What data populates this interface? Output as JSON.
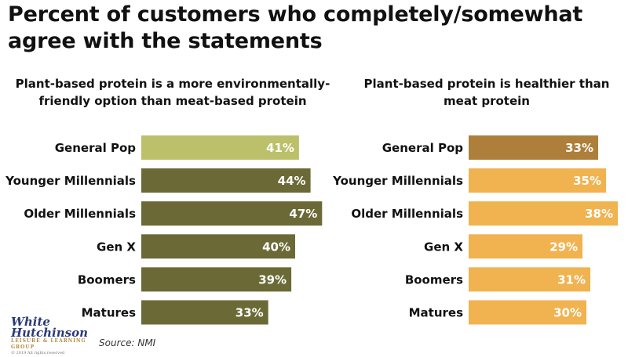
{
  "title": "Percent of customers who completely/somewhat agree with the statements",
  "source": "Source: NMI",
  "logo": {
    "line1": "White",
    "line2": "Hutchinson",
    "line3": "LEISURE & LEARNING GROUP",
    "line4": "© 2019 All rights reserved"
  },
  "chart_data": [
    {
      "type": "bar",
      "orientation": "horizontal",
      "title": "Plant-based protein is a more environmentally-friendly option than meat-based protein",
      "categories": [
        "General Pop",
        "Younger Millennials",
        "Older Millennials",
        "Gen X",
        "Boomers",
        "Matures"
      ],
      "values": [
        41,
        44,
        47,
        40,
        39,
        33
      ],
      "value_labels": [
        "41%",
        "44%",
        "47%",
        "40%",
        "39%",
        "33%"
      ],
      "colors": [
        "#bcc06a",
        "#6b6a37",
        "#6b6a37",
        "#6b6a37",
        "#6b6a37",
        "#6b6a37"
      ],
      "grid": false
    },
    {
      "type": "bar",
      "orientation": "horizontal",
      "title": "Plant-based protein is healthier than meat protein",
      "categories": [
        "General Pop",
        "Younger Millennials",
        "Older Millennials",
        "Gen X",
        "Boomers",
        "Matures"
      ],
      "values": [
        33,
        35,
        38,
        29,
        31,
        30
      ],
      "value_labels": [
        "33%",
        "35%",
        "38%",
        "29%",
        "31%",
        "30%"
      ],
      "colors": [
        "#ad7f3a",
        "#f0b350",
        "#f0b350",
        "#f0b350",
        "#f0b350",
        "#f0b350"
      ],
      "grid": false
    }
  ]
}
